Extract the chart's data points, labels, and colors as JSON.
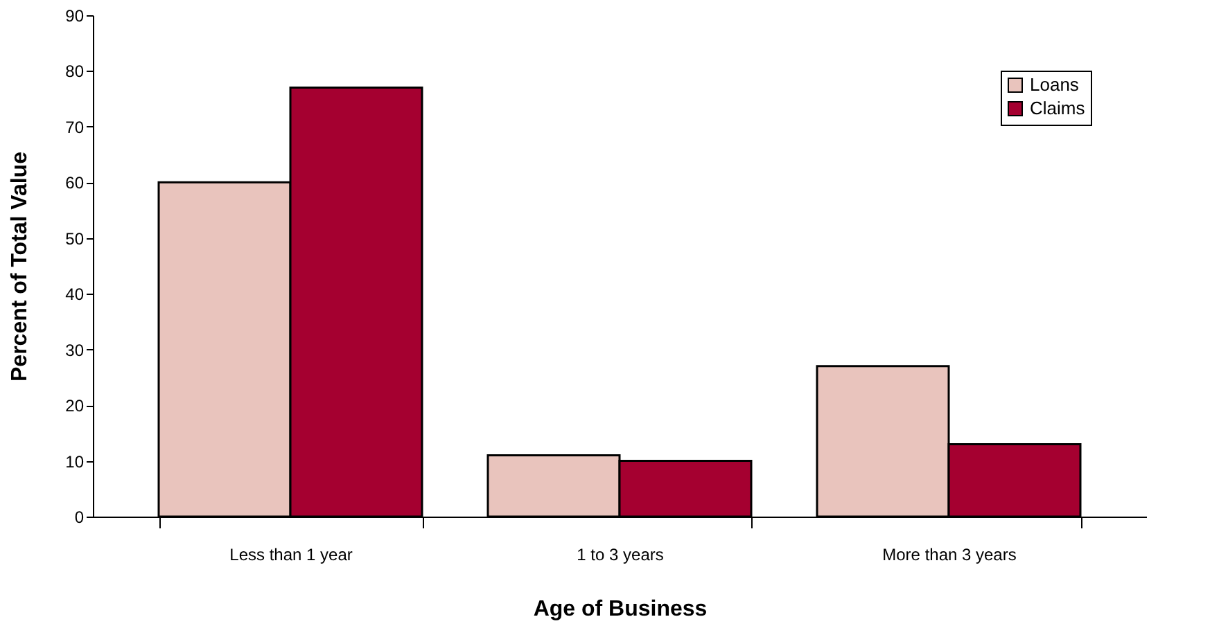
{
  "chart_data": {
    "type": "bar",
    "xlabel": "Age of Business",
    "ylabel": "Percent of Total Value",
    "categories": [
      "Less than 1 year",
      "1 to 3 years",
      "More than 3 years"
    ],
    "series": [
      {
        "name": "Loans",
        "color": "#e9c4bd",
        "values": [
          60,
          11,
          27
        ]
      },
      {
        "name": "Claims",
        "color": "#a50030",
        "values": [
          77,
          10,
          13
        ]
      }
    ],
    "ylim": [
      0,
      90
    ],
    "yticks": [
      0,
      10,
      20,
      30,
      40,
      50,
      60,
      70,
      80,
      90
    ],
    "grid": false,
    "legend": "top right"
  }
}
